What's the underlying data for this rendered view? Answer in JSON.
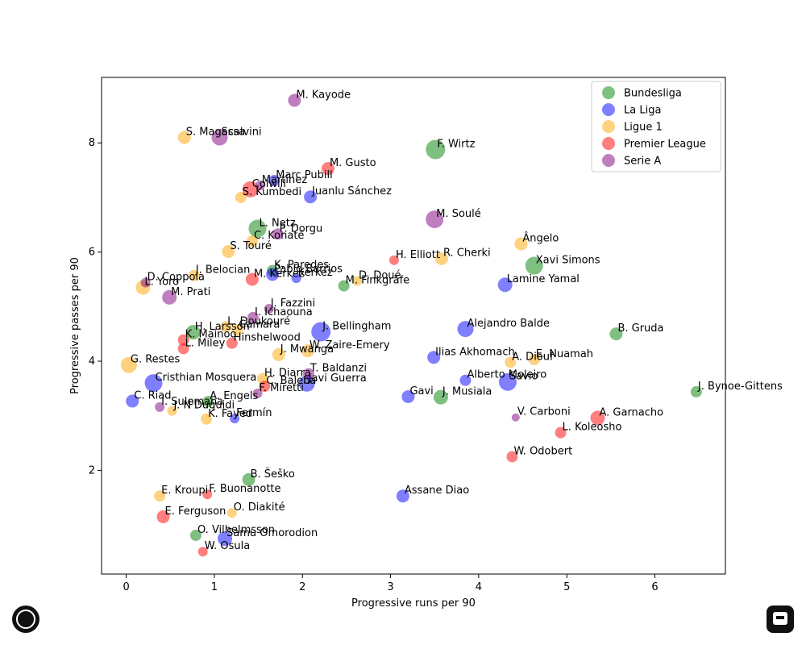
{
  "chart_data": {
    "type": "scatter",
    "xlabel": "Progressive runs per 90",
    "ylabel": "Progressive passes per 90",
    "xlim": [
      -0.28,
      6.8
    ],
    "ylim": [
      0.1,
      9.2
    ],
    "xticks": [
      0,
      1,
      2,
      3,
      4,
      5,
      6
    ],
    "yticks": [
      2,
      4,
      6,
      8
    ],
    "grid": false,
    "legend_position": "top-right",
    "series": [
      {
        "name": "Bundesliga",
        "color": "#008000",
        "points": [
          {
            "label": "F. Wirtz",
            "x": 3.51,
            "y": 7.88,
            "size": 12
          },
          {
            "label": "L. Netz",
            "x": 1.49,
            "y": 6.43,
            "size": 11
          },
          {
            "label": "Xavi Simons",
            "x": 4.63,
            "y": 5.75,
            "size": 11
          },
          {
            "label": "K. Paredes",
            "x": 1.66,
            "y": 5.66,
            "size": 7
          },
          {
            "label": "M. Finkgräfe",
            "x": 2.47,
            "y": 5.38,
            "size": 7
          },
          {
            "label": "H. Larsson",
            "x": 0.76,
            "y": 4.53,
            "size": 9
          },
          {
            "label": "B. Gruda",
            "x": 5.56,
            "y": 4.5,
            "size": 8
          },
          {
            "label": "J. Musiala",
            "x": 3.57,
            "y": 3.34,
            "size": 9
          },
          {
            "label": "A. Engels",
            "x": 0.93,
            "y": 3.26,
            "size": 7
          },
          {
            "label": "J. Bynoe-Gittens",
            "x": 6.47,
            "y": 3.44,
            "size": 7
          },
          {
            "label": "B. Šeško",
            "x": 1.39,
            "y": 1.83,
            "size": 8
          },
          {
            "label": "O. Vilhelmsson",
            "x": 0.79,
            "y": 0.81,
            "size": 7
          }
        ]
      },
      {
        "name": "La Liga",
        "color": "#0000ff",
        "points": [
          {
            "label": "Marc Pubill",
            "x": 1.68,
            "y": 7.31,
            "size": 7
          },
          {
            "label": "Alejandro Balde",
            "x": 3.85,
            "y": 4.59,
            "size": 10
          },
          {
            "label": "Juanlu Sánchez",
            "x": 2.09,
            "y": 7.01,
            "size": 8
          },
          {
            "label": "Pablo Barrios",
            "x": 1.66,
            "y": 5.59,
            "size": 8
          },
          {
            "label": "Lamine Yamal",
            "x": 4.3,
            "y": 5.4,
            "size": 9
          },
          {
            "label": "J. Bellingham",
            "x": 2.21,
            "y": 4.54,
            "size": 12
          },
          {
            "label": "Ilias Akhomach",
            "x": 3.49,
            "y": 4.07,
            "size": 8
          },
          {
            "label": "Cristhian Mosquera",
            "x": 0.31,
            "y": 3.6,
            "size": 11
          },
          {
            "label": "Alberto Moleiro",
            "x": 3.85,
            "y": 3.65,
            "size": 7
          },
          {
            "label": "Savio",
            "x": 4.33,
            "y": 3.62,
            "size": 11
          },
          {
            "label": "Javi Guerra",
            "x": 2.05,
            "y": 3.59,
            "size": 10
          },
          {
            "label": "Gavi",
            "x": 3.2,
            "y": 3.35,
            "size": 8
          },
          {
            "label": "C. Riad",
            "x": 0.07,
            "y": 3.27,
            "size": 8
          },
          {
            "label": "Fermín",
            "x": 1.23,
            "y": 2.95,
            "size": 6
          },
          {
            "label": "Assane Diao",
            "x": 3.14,
            "y": 1.53,
            "size": 8
          },
          {
            "label": "Samu Omorodion",
            "x": 1.12,
            "y": 0.75,
            "size": 9
          },
          {
            "label": "Kerkez",
            "x": 1.93,
            "y": 5.52,
            "size": 6
          }
        ]
      },
      {
        "name": "Ligue 1",
        "color": "#ffa500",
        "points": [
          {
            "label": "S. Magassa",
            "x": 0.66,
            "y": 8.1,
            "size": 8
          },
          {
            "label": "S. Kumbedi",
            "x": 1.3,
            "y": 7.0,
            "size": 7
          },
          {
            "label": "C. Konaté",
            "x": 1.43,
            "y": 6.2,
            "size": 7
          },
          {
            "label": "S. Touré",
            "x": 1.16,
            "y": 6.01,
            "size": 8
          },
          {
            "label": "Ângelo",
            "x": 4.48,
            "y": 6.15,
            "size": 8
          },
          {
            "label": "R. Cherki",
            "x": 3.58,
            "y": 5.88,
            "size": 8
          },
          {
            "label": "J. Belocian",
            "x": 0.77,
            "y": 5.57,
            "size": 7
          },
          {
            "label": "L. Yoro",
            "x": 0.19,
            "y": 5.35,
            "size": 9
          },
          {
            "label": "D. Doué",
            "x": 2.62,
            "y": 5.47,
            "size": 6
          },
          {
            "label": "L. Doukouré",
            "x": 1.13,
            "y": 4.63,
            "size": 7
          },
          {
            "label": "Camara",
            "x": 1.26,
            "y": 4.57,
            "size": 7
          },
          {
            "label": "W. Zaire-Emery",
            "x": 2.06,
            "y": 4.19,
            "size": 8
          },
          {
            "label": "J. Mwanga",
            "x": 1.73,
            "y": 4.12,
            "size": 8
          },
          {
            "label": "G. Restes",
            "x": 0.03,
            "y": 3.93,
            "size": 10
          },
          {
            "label": "A. Diouf",
            "x": 4.36,
            "y": 3.98,
            "size": 7
          },
          {
            "label": "E. Nuamah",
            "x": 4.63,
            "y": 4.03,
            "size": 7
          },
          {
            "label": "H. Diarra",
            "x": 1.55,
            "y": 3.68,
            "size": 7
          },
          {
            "label": "J. N'Duquidi",
            "x": 0.52,
            "y": 3.09,
            "size": 6
          },
          {
            "label": "K. Fayed",
            "x": 0.91,
            "y": 2.94,
            "size": 7
          },
          {
            "label": "E. Kroupi",
            "x": 0.38,
            "y": 1.53,
            "size": 7
          },
          {
            "label": "O. Diakité",
            "x": 1.2,
            "y": 1.22,
            "size": 6
          }
        ]
      },
      {
        "name": "Premier League",
        "color": "#ff0000",
        "points": [
          {
            "label": "M. Gusto",
            "x": 2.29,
            "y": 7.53,
            "size": 8
          },
          {
            "label": "Colwill",
            "x": 1.41,
            "y": 7.15,
            "size": 10
          },
          {
            "label": "H. Elliott",
            "x": 3.04,
            "y": 5.85,
            "size": 6
          },
          {
            "label": "M. Kerkez",
            "x": 1.43,
            "y": 5.5,
            "size": 8
          },
          {
            "label": "K. Mainoo",
            "x": 0.65,
            "y": 4.39,
            "size": 7
          },
          {
            "label": "L. Miley",
            "x": 0.65,
            "y": 4.23,
            "size": 7
          },
          {
            "label": "Hinshelwood",
            "x": 1.2,
            "y": 4.33,
            "size": 7
          },
          {
            "label": "C. Baleba",
            "x": 1.57,
            "y": 3.54,
            "size": 7
          },
          {
            "label": "A. Garnacho",
            "x": 5.35,
            "y": 2.96,
            "size": 9
          },
          {
            "label": "L. Koleosho",
            "x": 4.93,
            "y": 2.69,
            "size": 7
          },
          {
            "label": "W. Odobert",
            "x": 4.38,
            "y": 2.25,
            "size": 7
          },
          {
            "label": "F. Buonanotte",
            "x": 0.92,
            "y": 1.56,
            "size": 6
          },
          {
            "label": "E. Ferguson",
            "x": 0.42,
            "y": 1.15,
            "size": 8
          },
          {
            "label": "W. Osula",
            "x": 0.87,
            "y": 0.51,
            "size": 6
          }
        ]
      },
      {
        "name": "Serie A",
        "color": "#800080",
        "points": [
          {
            "label": "M. Kayode",
            "x": 1.91,
            "y": 8.78,
            "size": 8
          },
          {
            "label": "Scalvini",
            "x": 1.06,
            "y": 8.1,
            "size": 10
          },
          {
            "label": "Martinez",
            "x": 1.52,
            "y": 7.22,
            "size": 6
          },
          {
            "label": "M. Soulé",
            "x": 3.5,
            "y": 6.6,
            "size": 11
          },
          {
            "label": "P. Dorgu",
            "x": 1.72,
            "y": 6.33,
            "size": 7
          },
          {
            "label": "D. Coppola",
            "x": 0.22,
            "y": 5.44,
            "size": 6
          },
          {
            "label": "M. Prati",
            "x": 0.49,
            "y": 5.17,
            "size": 9
          },
          {
            "label": "J. Fazzini",
            "x": 1.62,
            "y": 4.96,
            "size": 6
          },
          {
            "label": "I. Ichaouna",
            "x": 1.44,
            "y": 4.8,
            "size": 7
          },
          {
            "label": "T. Baldanzi",
            "x": 2.07,
            "y": 3.77,
            "size": 7
          },
          {
            "label": "F. Miretti",
            "x": 1.49,
            "y": 3.41,
            "size": 6
          },
          {
            "label": "I. Sulemana",
            "x": 0.38,
            "y": 3.16,
            "size": 6
          },
          {
            "label": "V. Carboni",
            "x": 4.42,
            "y": 2.97,
            "size": 5
          }
        ]
      }
    ]
  }
}
